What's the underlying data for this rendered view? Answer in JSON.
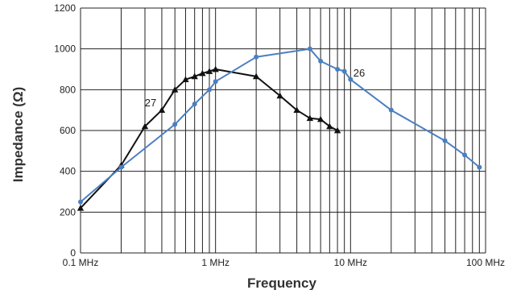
{
  "chart_data": {
    "type": "line",
    "xlabel": "Frequency",
    "ylabel": "Impedance (Ω)",
    "x_scale": "log",
    "xlim": [
      0.1,
      100
    ],
    "ylim": [
      0,
      1200
    ],
    "y_ticks": [
      0,
      200,
      400,
      600,
      800,
      1000,
      1200
    ],
    "x_ticks": [
      {
        "value": 0.1,
        "label": "0.1 MHz"
      },
      {
        "value": 1,
        "label": "1 MHz"
      },
      {
        "value": 10,
        "label": "10 MHz"
      },
      {
        "value": 100,
        "label": "100 MHz"
      }
    ],
    "grid": true,
    "series": [
      {
        "name": "27",
        "color": "#111111",
        "marker": "triangle",
        "x": [
          0.1,
          0.2,
          0.3,
          0.4,
          0.5,
          0.6,
          0.7,
          0.8,
          0.9,
          1.0,
          2.0,
          3.0,
          4.0,
          5.0,
          6.0,
          7.0,
          8.0
        ],
        "y": [
          220,
          430,
          620,
          700,
          800,
          850,
          865,
          880,
          890,
          900,
          865,
          770,
          700,
          660,
          655,
          620,
          600
        ]
      },
      {
        "name": "26",
        "color": "#4a7fc1",
        "marker": "circle",
        "x": [
          0.1,
          0.2,
          0.5,
          0.7,
          0.9,
          1.0,
          2.0,
          5.0,
          6.0,
          8.0,
          9.0,
          10.0,
          20.0,
          50.0,
          70.0,
          90.0
        ],
        "y": [
          250,
          420,
          630,
          730,
          800,
          840,
          960,
          1000,
          940,
          900,
          890,
          850,
          700,
          550,
          480,
          420
        ]
      }
    ]
  }
}
